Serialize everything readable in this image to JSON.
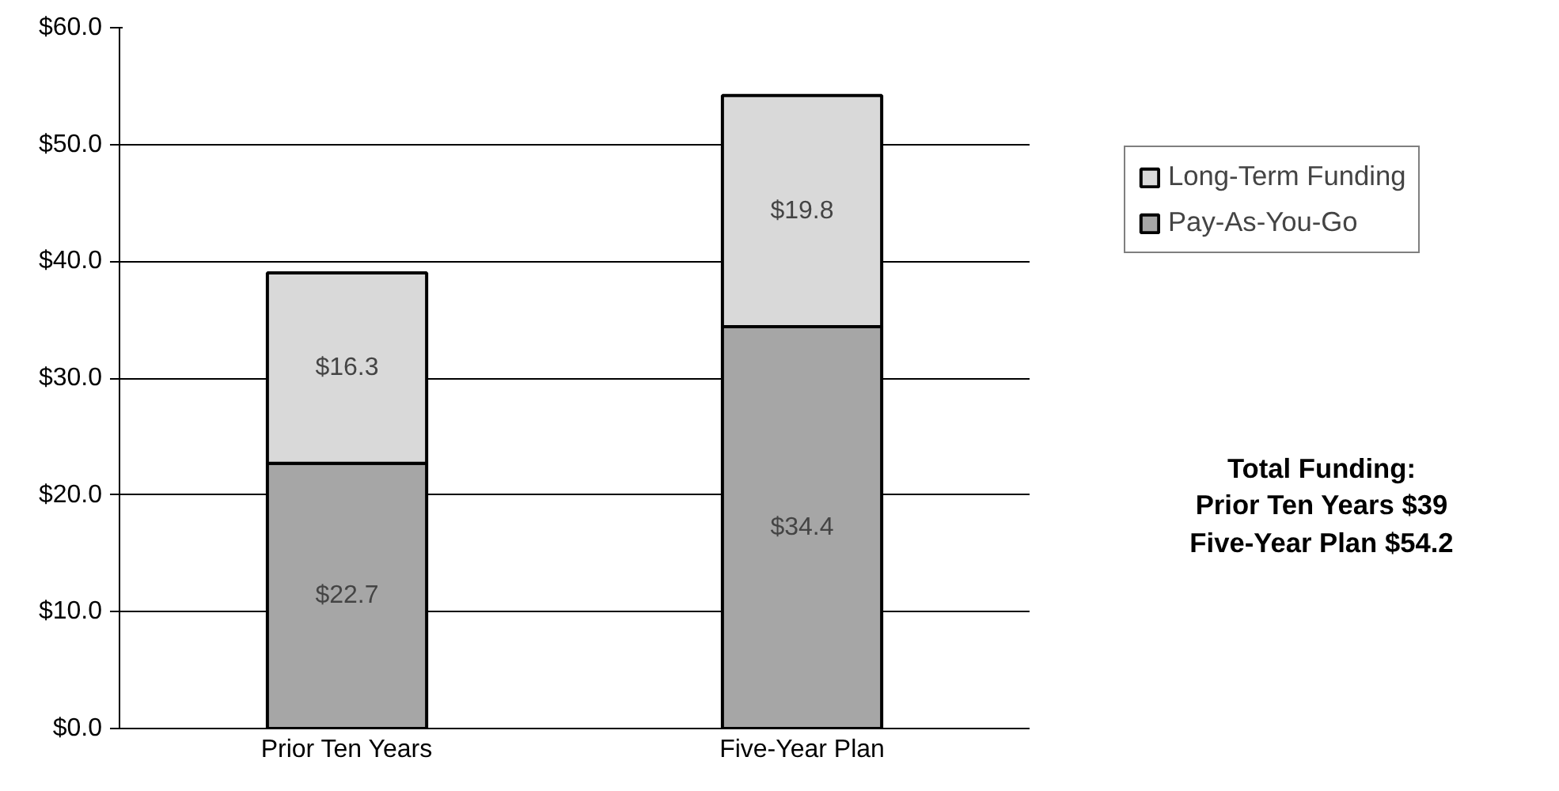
{
  "chart_data": {
    "type": "bar",
    "stacked": true,
    "categories": [
      "Prior Ten Years",
      "Five-Year Plan"
    ],
    "series": [
      {
        "name": "Pay-As-You-Go",
        "color": "#a6a6a6",
        "values": [
          22.7,
          34.4
        ],
        "value_labels": [
          "$22.7",
          "$34.4"
        ]
      },
      {
        "name": "Long-Term Funding",
        "color": "#d9d9d9",
        "values": [
          16.3,
          19.8
        ],
        "value_labels": [
          "$16.3",
          "$19.8"
        ]
      }
    ],
    "ylim": [
      0,
      60
    ],
    "yticks": [
      {
        "value": 0,
        "label": "$0.0"
      },
      {
        "value": 10,
        "label": "$10.0"
      },
      {
        "value": 20,
        "label": "$20.0"
      },
      {
        "value": 30,
        "label": "$30.0"
      },
      {
        "value": 40,
        "label": "$40.0"
      },
      {
        "value": 50,
        "label": "$50.0"
      },
      {
        "value": 60,
        "label": "$60.0"
      }
    ],
    "grid": "y",
    "legend": "right",
    "annotations": [
      "Total Funding:",
      "Prior Ten Years $39",
      "Five-Year Plan $54.2"
    ]
  }
}
